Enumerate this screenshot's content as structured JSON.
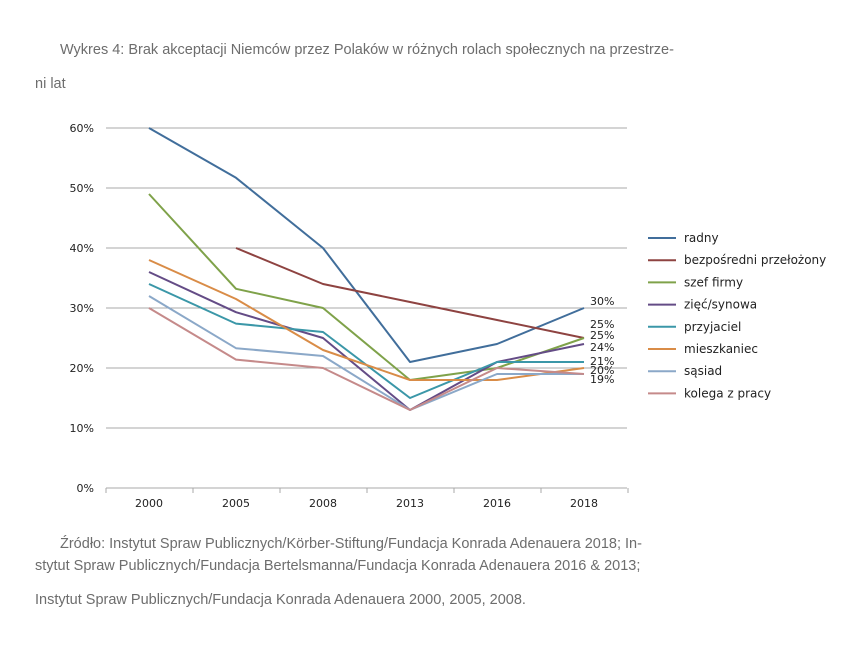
{
  "caption": {
    "title_line1": "Wykres 4: Brak akceptacji Niemców przez Polaków w różnych rolach społecznych na przestrze-",
    "title_line2": "ni lat"
  },
  "source": {
    "line1": "Źródło: Instytut Spraw Publicznych/Körber-Stiftung/Fundacja Konrada Adenauera 2018; In-",
    "line2": "stytut Spraw Publicznych/Fundacja Bertelsmanna/Fundacja Konrada  Adenauera 2016 & 2013;",
    "line3": "Instytut Spraw Publicznych/Fundacja Konrada Adenauera 2000, 2005, 2008."
  },
  "chart_data": {
    "type": "line",
    "x": [
      "2000",
      "2005",
      "2008",
      "2013",
      "2016",
      "2018"
    ],
    "y_ticks": [
      "0%",
      "10%",
      "20%",
      "30%",
      "40%",
      "50%",
      "60%"
    ],
    "ylim": [
      0,
      60
    ],
    "grid": true,
    "legend_position": "right",
    "series": [
      {
        "name": "radny",
        "color": "#416E9B",
        "values": [
          60,
          51.7,
          40,
          21,
          24,
          30
        ],
        "end_label": "30%"
      },
      {
        "name": "bezpośredni przełożony",
        "color": "#8E4341",
        "values": [
          null,
          40,
          34,
          31,
          28,
          25
        ],
        "end_label": "25%"
      },
      {
        "name": "szef firmy",
        "color": "#7FA24A",
        "values": [
          49,
          33.2,
          30,
          18,
          20,
          25
        ],
        "end_label": "25%"
      },
      {
        "name": "zięć/synowa",
        "color": "#644C86",
        "values": [
          36,
          29.3,
          25,
          13,
          21,
          24
        ],
        "end_label": "24%"
      },
      {
        "name": "przyjaciel",
        "color": "#3B97A8",
        "values": [
          34,
          27.4,
          26,
          15,
          21,
          21
        ],
        "end_label": "21%"
      },
      {
        "name": "mieszkaniec",
        "color": "#D98C47",
        "values": [
          38,
          31.5,
          23,
          18,
          18,
          20
        ],
        "end_label": "20%"
      },
      {
        "name": "sąsiad",
        "color": "#8BA8C8",
        "values": [
          32,
          23.3,
          22,
          13,
          19,
          19
        ],
        "end_label": "19%"
      },
      {
        "name": "kolega z pracy",
        "color": "#C58A8A",
        "values": [
          30,
          21.4,
          20,
          13,
          20,
          19
        ],
        "end_label": null
      }
    ]
  }
}
